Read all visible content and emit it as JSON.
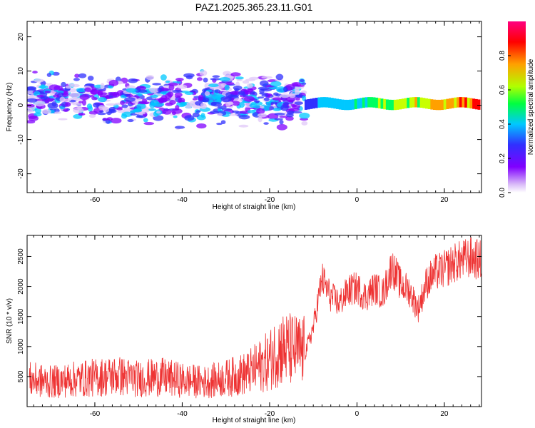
{
  "title": "PAZ1.2025.365.23.11.G01",
  "colors": {
    "snr_line": "#ee3333",
    "colormap": [
      "#ffffff",
      "#e0c8f8",
      "#8000ff",
      "#3030ff",
      "#00c8ff",
      "#00ff60",
      "#c8ff00",
      "#ffa000",
      "#ff0000",
      "#ff00a0"
    ]
  },
  "chart_data": [
    {
      "type": "heatmap",
      "xlabel": "Height of straight line (km)",
      "ylabel": "Frequency (Hz)",
      "xlim": [
        -75.5,
        28.5
      ],
      "ylim": [
        -25.5,
        24.5
      ],
      "xticks": [
        -60,
        -40,
        -20,
        0,
        20
      ],
      "yticks": [
        -20,
        -10,
        0,
        10,
        20
      ],
      "colorbar": {
        "label": "Normalized spectral amplitude",
        "range": [
          0.0,
          1.0
        ],
        "ticks": [
          "0.0",
          "0.2",
          "0.4",
          "0.6",
          "0.8"
        ]
      },
      "description_points": [
        {
          "x_range": [
            -75,
            -12
          ],
          "freq_spread": [
            -10,
            10
          ],
          "amplitude": [
            0.05,
            0.35
          ]
        },
        {
          "x_range": [
            -12,
            28
          ],
          "freq_center": 0.5,
          "freq_halfwidth": 1.5,
          "amplitude": [
            0.35,
            1.0
          ]
        }
      ]
    },
    {
      "type": "line",
      "xlabel": "Height of straight line (km)",
      "ylabel": "SNR (10 * v/v)",
      "xlim": [
        -75.5,
        28.5
      ],
      "ylim": [
        0,
        2850
      ],
      "xticks": [
        -60,
        -40,
        -20,
        0,
        20
      ],
      "yticks": [
        500,
        1000,
        1500,
        2000,
        2500
      ],
      "x": [
        -75,
        -70,
        -65,
        -60,
        -55,
        -50,
        -45,
        -40,
        -35,
        -30,
        -25,
        -20,
        -18,
        -15,
        -12,
        -10,
        -8,
        -6,
        -4,
        -2,
        0,
        2,
        4,
        6,
        8,
        10,
        12,
        14,
        16,
        18,
        20,
        22,
        24,
        26,
        28
      ],
      "y": [
        420,
        380,
        420,
        450,
        480,
        430,
        460,
        410,
        380,
        440,
        520,
        720,
        900,
        880,
        850,
        1300,
        2100,
        1800,
        1700,
        1900,
        1950,
        1800,
        1950,
        1850,
        2300,
        2000,
        1900,
        1600,
        2050,
        2200,
        2250,
        2350,
        2400,
        2450,
        2400
      ]
    }
  ]
}
